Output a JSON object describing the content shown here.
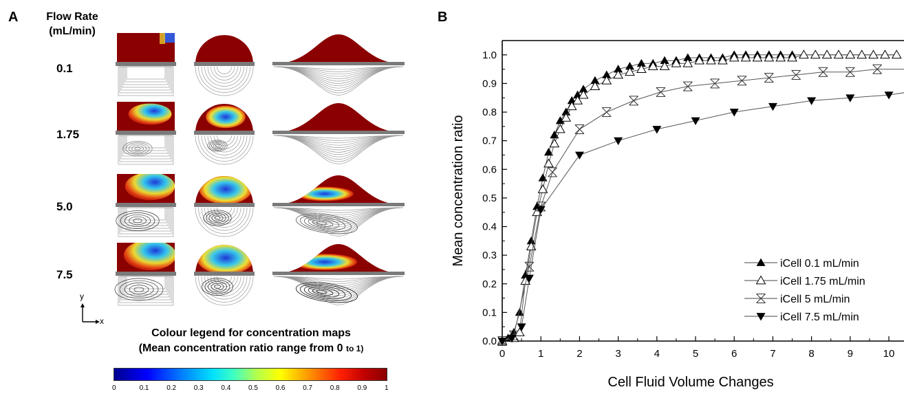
{
  "panel_a": {
    "letter": "A",
    "header_line1": "Flow Rate",
    "header_line2": "(mL/min)",
    "rates": [
      "0.1",
      "1.75",
      "5.0",
      "7.5"
    ],
    "axis_y": "y",
    "axis_x": "x",
    "colour_legend_line1": "Colour legend for concentration maps",
    "colour_legend_line2": "(Mean concentration ratio range from 0",
    "colour_legend_to": "to 1)",
    "colorbar_ticks": [
      "0",
      "0.1",
      "0.2",
      "0.3",
      "0.4",
      "0.5",
      "0.6",
      "0.7",
      "0.8",
      "0.9",
      "1"
    ],
    "colors": {
      "high": "#8b0000",
      "flowline": "#9a9a9a",
      "divider": "#7a7a7a"
    }
  },
  "panel_b": {
    "letter": "B"
  },
  "chart_data": {
    "type": "line",
    "title": "",
    "xlabel": "Cell Fluid Volume Changes",
    "ylabel": "Mean concentration ratio",
    "xlim": [
      0,
      10.5
    ],
    "ylim": [
      0,
      1.05
    ],
    "xticks": [
      0,
      1,
      2,
      3,
      4,
      5,
      6,
      7,
      8,
      9,
      10
    ],
    "yticks": [
      "0.0",
      "0.1",
      "0.2",
      "0.3",
      "0.4",
      "0.5",
      "0.6",
      "0.7",
      "0.8",
      "0.9",
      "1.0"
    ],
    "grid": false,
    "legend_position": "bottom-right",
    "series": [
      {
        "name": "iCell 0.1 mL/min",
        "marker": "triangle-up-filled",
        "x": [
          0,
          0.15,
          0.3,
          0.45,
          0.6,
          0.75,
          0.9,
          1.05,
          1.2,
          1.35,
          1.5,
          1.65,
          1.8,
          1.95,
          2.1,
          2.4,
          2.7,
          3.0,
          3.3,
          3.6,
          3.9,
          4.2,
          4.5,
          4.8,
          5.1,
          5.4,
          5.7,
          6.0,
          6.3,
          6.6,
          6.9,
          7.2,
          7.5,
          7.8,
          8.1,
          8.4,
          8.7,
          9.0,
          9.3,
          9.6,
          9.9,
          10.2
        ],
        "y": [
          0.0,
          0.01,
          0.03,
          0.1,
          0.23,
          0.35,
          0.47,
          0.57,
          0.66,
          0.72,
          0.77,
          0.8,
          0.84,
          0.86,
          0.88,
          0.91,
          0.93,
          0.95,
          0.96,
          0.97,
          0.97,
          0.98,
          0.98,
          0.99,
          0.99,
          0.99,
          0.99,
          1.0,
          1.0,
          1.0,
          1.0,
          1.0,
          1.0,
          1.0,
          1.0,
          1.0,
          1.0,
          1.0,
          1.0,
          1.0,
          1.0,
          1.0
        ]
      },
      {
        "name": "iCell 1.75 mL/min",
        "marker": "triangle-up-open",
        "x": [
          0,
          0.3,
          0.45,
          0.6,
          0.75,
          0.9,
          1.05,
          1.2,
          1.35,
          1.5,
          1.65,
          1.8,
          1.95,
          2.1,
          2.4,
          2.7,
          3.0,
          3.3,
          3.6,
          3.9,
          4.2,
          4.5,
          4.8,
          5.1,
          5.4,
          5.7,
          6.0,
          6.3,
          6.6,
          6.9,
          7.2,
          7.5,
          7.8,
          8.1,
          8.4,
          8.7,
          9.0,
          9.3,
          9.6,
          9.9,
          10.2
        ],
        "y": [
          0.0,
          0.01,
          0.03,
          0.21,
          0.33,
          0.45,
          0.53,
          0.62,
          0.69,
          0.74,
          0.78,
          0.82,
          0.84,
          0.86,
          0.89,
          0.91,
          0.93,
          0.94,
          0.95,
          0.96,
          0.96,
          0.97,
          0.97,
          0.98,
          0.98,
          0.98,
          0.99,
          0.99,
          0.99,
          0.99,
          0.99,
          0.99,
          1.0,
          1.0,
          1.0,
          1.0,
          1.0,
          1.0,
          1.0,
          1.0,
          1.0
        ]
      },
      {
        "name": "iCell 5 mL/min",
        "marker": "x-box",
        "x": [
          0,
          0.3,
          0.7,
          1.0,
          1.3,
          2.0,
          2.7,
          3.4,
          4.1,
          4.8,
          5.5,
          6.2,
          6.9,
          7.6,
          8.3,
          9.0,
          9.7,
          10.4
        ],
        "y": [
          0.0,
          0.02,
          0.26,
          0.47,
          0.59,
          0.74,
          0.8,
          0.84,
          0.87,
          0.89,
          0.9,
          0.91,
          0.92,
          0.93,
          0.94,
          0.94,
          0.95,
          0.95
        ]
      },
      {
        "name": "iCell 7.5 mL/min",
        "marker": "triangle-down-filled",
        "x": [
          0,
          0.25,
          0.5,
          0.7,
          1.0,
          2.0,
          3.0,
          4.0,
          5.0,
          6.0,
          7.0,
          8.0,
          9.0,
          10.0,
          10.5
        ],
        "y": [
          0.0,
          0.01,
          0.05,
          0.22,
          0.46,
          0.65,
          0.7,
          0.74,
          0.77,
          0.8,
          0.82,
          0.84,
          0.85,
          0.86,
          0.87
        ]
      }
    ]
  }
}
